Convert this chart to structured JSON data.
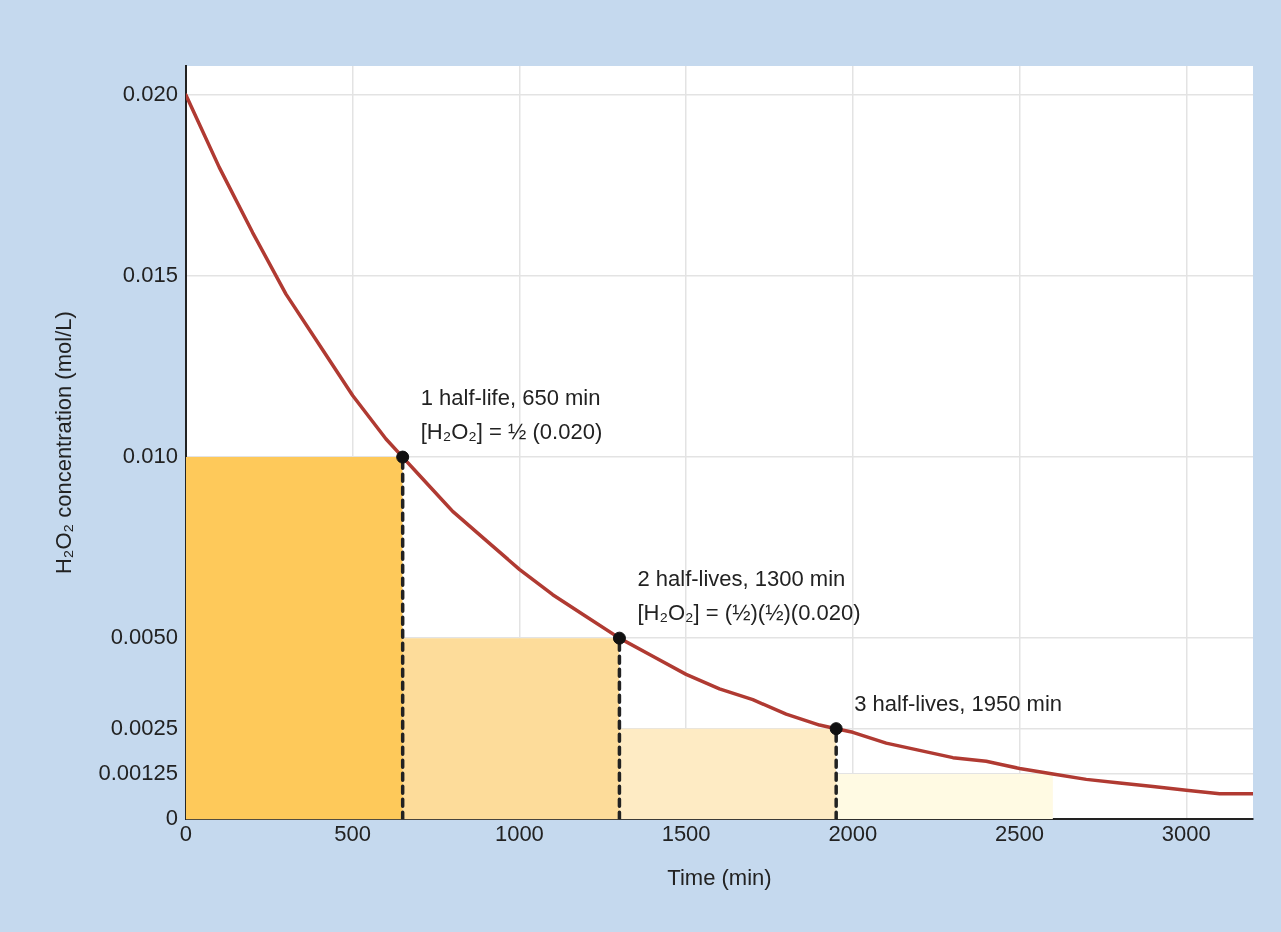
{
  "chart_data": {
    "type": "line",
    "xlabel": "Time (min)",
    "ylabel": "H₂O₂ concentration (mol/L)",
    "xlim": [
      0,
      3200
    ],
    "xticks": [
      0,
      500,
      1000,
      1500,
      2000,
      2500,
      3000
    ],
    "ylim": [
      0,
      0.0208
    ],
    "yticks": [
      0,
      {
        "value": 0.00125,
        "label": "0.00125"
      },
      {
        "value": 0.0025,
        "label": "0.0025"
      },
      {
        "value": 0.005,
        "label": "0.0050"
      },
      {
        "value": 0.01,
        "label": "0.010"
      },
      {
        "value": 0.015,
        "label": "0.015"
      },
      {
        "value": 0.02,
        "label": "0.020"
      }
    ],
    "grid": true,
    "legend": false,
    "series": [
      {
        "type": "area",
        "color": "#fffae3",
        "x": [
          0,
          2600
        ],
        "values": [
          0.00125,
          0.00125
        ]
      },
      {
        "type": "area",
        "color": "#feebc4",
        "x": [
          0,
          1950
        ],
        "values": [
          0.0025,
          0.0025
        ]
      },
      {
        "type": "area",
        "color": "#fddc9a",
        "x": [
          0,
          1300
        ],
        "values": [
          0.005,
          0.005
        ]
      },
      {
        "type": "area",
        "color": "#fec95a",
        "x": [
          0,
          650
        ],
        "values": [
          0.01,
          0.01
        ]
      },
      {
        "type": "line",
        "color": "#222222",
        "line_style": "dashed",
        "marker": "none",
        "x": [
          650,
          650
        ],
        "values": [
          0,
          0.01
        ]
      },
      {
        "type": "line",
        "color": "#222222",
        "line_style": "dashed",
        "marker": "none",
        "x": [
          1300,
          1300
        ],
        "values": [
          0,
          0.005
        ]
      },
      {
        "type": "line",
        "color": "#222222",
        "line_style": "dashed",
        "marker": "none",
        "x": [
          1950,
          1950
        ],
        "values": [
          0,
          0.0025
        ]
      },
      {
        "color": "#b03a32",
        "marker": "none",
        "x": [
          0,
          100,
          200,
          300,
          400,
          500,
          600,
          650,
          700,
          800,
          900,
          1000,
          1100,
          1200,
          1300,
          1400,
          1500,
          1600,
          1700,
          1800,
          1900,
          1950,
          2000,
          2100,
          2200,
          2300,
          2400,
          2500,
          2600,
          2700,
          2800,
          2900,
          3000,
          3100,
          3200
        ],
        "values": [
          0.02,
          0.018,
          0.0162,
          0.0145,
          0.0131,
          0.0117,
          0.0105,
          0.01,
          0.0095,
          0.0085,
          0.0077,
          0.0069,
          0.0062,
          0.0056,
          0.005,
          0.0045,
          0.004,
          0.0036,
          0.0033,
          0.0029,
          0.0026,
          0.0025,
          0.0024,
          0.0021,
          0.0019,
          0.0017,
          0.0016,
          0.0014,
          0.00125,
          0.0011,
          0.001,
          0.0009,
          0.0008,
          0.0007,
          0.0007
        ]
      },
      {
        "type": "scatter",
        "color": "#111111",
        "marker": "circle",
        "x": [
          650,
          1300,
          1950
        ],
        "values": [
          0.01,
          0.005,
          0.0025
        ]
      }
    ],
    "annotations": [
      {
        "text": "1 half-life, 650 min\n[H₂O₂] = ½ (0.020)",
        "x": 650,
        "y": 0.01
      },
      {
        "text": "2 half-lives, 1300 min\n[H₂O₂] = (½)(½)(0.020)",
        "x": 1300,
        "y": 0.005
      },
      {
        "text": "3 half-lives, 1950 min",
        "x": 1950,
        "y": 0.0025
      }
    ]
  }
}
